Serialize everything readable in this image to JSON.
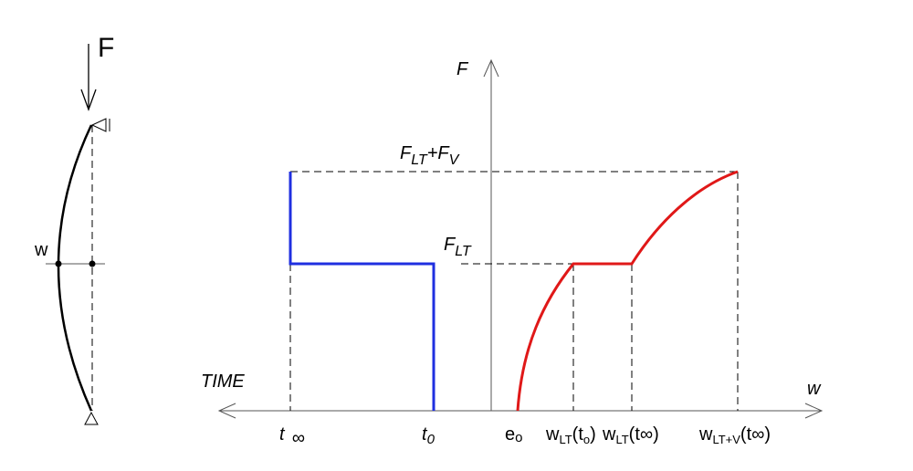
{
  "sketch": {
    "force": "F",
    "deflection": "w"
  },
  "axes": {
    "vertical": "F",
    "horizontal": "w",
    "time": "TIME"
  },
  "levels": {
    "total": [
      "F",
      "LT",
      "+F",
      "V"
    ],
    "long_term": [
      "F",
      "LT"
    ]
  },
  "ticks": {
    "t_inf": [
      "t",
      "∞"
    ],
    "t_0": [
      "t",
      "0"
    ],
    "e_0": [
      "e",
      "o"
    ],
    "w_lt_t0": [
      "w",
      "LT",
      "(t",
      "o",
      ")"
    ],
    "w_lt_tinf": [
      "w",
      "LT",
      "(t∞)"
    ],
    "w_ltv_tinf": [
      "w",
      "LT+V",
      "(t∞)"
    ]
  }
}
